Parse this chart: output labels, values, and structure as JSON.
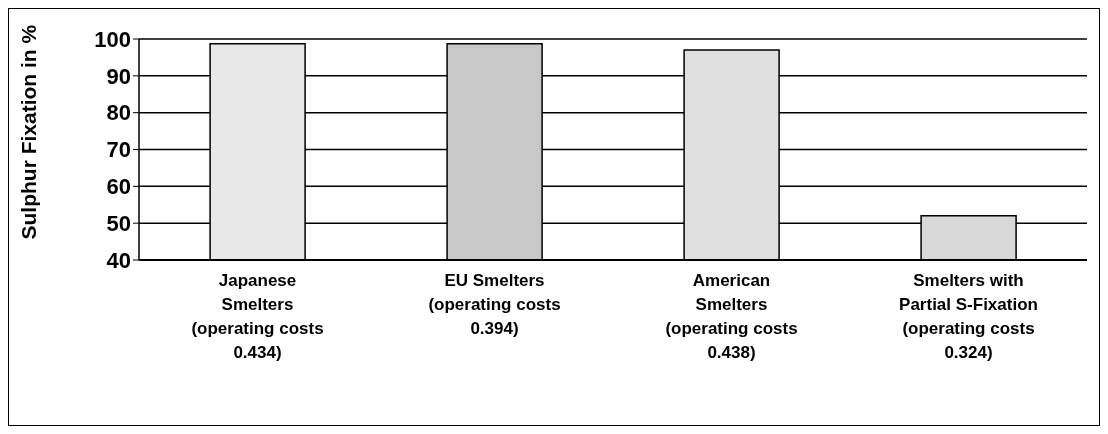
{
  "chart_data": {
    "type": "bar",
    "ylabel": "Sulphur Fixation in %",
    "categories": [
      "Japanese\nSmelters\n(operating costs\n0.434)",
      "EU Smelters\n(operating costs\n0.394)",
      "American\nSmelters\n(operating costs\n0.438)",
      "Smelters with\nPartial S-Fixation\n(operating costs\n0.324)"
    ],
    "values": [
      98.7,
      98.7,
      97,
      52
    ],
    "colors": [
      "#e8e8e8",
      "#c8c8c8",
      "#e0e0e0",
      "#d8d8d8"
    ],
    "ylim": [
      40,
      100
    ],
    "yticks": [
      40,
      50,
      60,
      70,
      80,
      90,
      100
    ],
    "grid": "y",
    "legend": false
  }
}
